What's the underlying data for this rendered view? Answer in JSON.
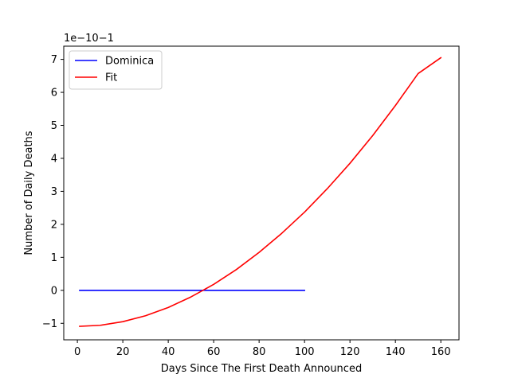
{
  "chart_data": {
    "type": "line",
    "xlabel": "Days Since The First Death Announced",
    "ylabel": "Number of Daily Deaths",
    "offset_text": "1e−10−1",
    "xlim": [
      -6,
      168
    ],
    "ylim": [
      -1.5,
      7.4
    ],
    "xticks": [
      0,
      20,
      40,
      60,
      80,
      100,
      120,
      140,
      160
    ],
    "xtick_labels": [
      "0",
      "20",
      "40",
      "60",
      "80",
      "100",
      "120",
      "140",
      "160"
    ],
    "yticks": [
      -1,
      0,
      1,
      2,
      3,
      4,
      5,
      6,
      7
    ],
    "ytick_labels": [
      "−1",
      "0",
      "1",
      "2",
      "3",
      "4",
      "5",
      "6",
      "7"
    ],
    "legend_position": "upper-left",
    "grid": false,
    "series": [
      {
        "name": "Dominica",
        "color": "#0000ff",
        "x": [
          1,
          100
        ],
        "y": [
          0,
          0
        ]
      },
      {
        "name": "Fit",
        "color": "#ff0000",
        "x": [
          1,
          10,
          20,
          30,
          40,
          50,
          60,
          70,
          80,
          90,
          100,
          110,
          120,
          130,
          140,
          150,
          160
        ],
        "y": [
          -1.09,
          -1.06,
          -0.95,
          -0.77,
          -0.52,
          -0.2,
          0.18,
          0.63,
          1.15,
          1.73,
          2.37,
          3.08,
          3.85,
          4.69,
          5.6,
          6.57,
          7.05
        ]
      }
    ]
  }
}
